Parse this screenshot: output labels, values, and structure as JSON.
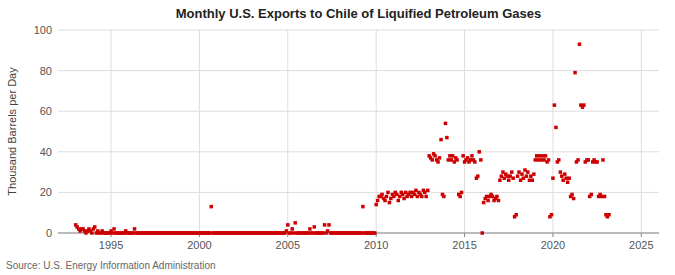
{
  "chart_data": {
    "type": "scatter",
    "title": "Monthly U.S. Exports to Chile of Liquified Petroleum Gases",
    "y_label": "Thousand Barrels per Day",
    "annotations": [
      "Source: U.S. Energy Information Administration"
    ],
    "color": "#cc0000",
    "marker": "square",
    "grid": true,
    "xlim": [
      1992.0,
      2026.0
    ],
    "ylim": [
      0,
      100
    ],
    "xticks": [
      1995,
      2000,
      2005,
      2010,
      2015,
      2020,
      2025
    ],
    "yticks": [
      0,
      20,
      40,
      60,
      80,
      100
    ],
    "x": [
      1993.0,
      1993.08,
      1993.17,
      1993.25,
      1993.33,
      1993.42,
      1993.5,
      1993.58,
      1993.67,
      1993.75,
      1993.83,
      1993.92,
      1994.0,
      1994.08,
      1994.17,
      1994.25,
      1994.33,
      1994.42,
      1994.5,
      1994.58,
      1994.67,
      1994.75,
      1994.83,
      1994.92,
      1995.0,
      1995.08,
      1995.17,
      1995.25,
      1995.33,
      1995.42,
      1995.5,
      1995.58,
      1995.67,
      1995.75,
      1995.83,
      1995.92,
      1996.0,
      1996.08,
      1996.17,
      1996.25,
      1996.33,
      1996.42,
      1996.5,
      1996.58,
      1996.67,
      1996.75,
      1996.83,
      1996.92,
      1997.0,
      1997.08,
      1997.17,
      1997.25,
      1997.33,
      1997.42,
      1997.5,
      1997.58,
      1997.67,
      1997.75,
      1997.83,
      1997.92,
      1998.0,
      1998.08,
      1998.17,
      1998.25,
      1998.33,
      1998.42,
      1998.5,
      1998.58,
      1998.67,
      1998.75,
      1998.83,
      1998.92,
      1999.0,
      1999.08,
      1999.17,
      1999.25,
      1999.33,
      1999.42,
      1999.5,
      1999.58,
      1999.67,
      1999.75,
      1999.83,
      1999.92,
      2000.0,
      2000.08,
      2000.17,
      2000.25,
      2000.33,
      2000.42,
      2000.5,
      2000.58,
      2000.67,
      2000.75,
      2000.83,
      2000.92,
      2001.0,
      2001.08,
      2001.17,
      2001.25,
      2001.33,
      2001.42,
      2001.5,
      2001.58,
      2001.67,
      2001.75,
      2001.83,
      2001.92,
      2002.0,
      2002.08,
      2002.17,
      2002.25,
      2002.33,
      2002.42,
      2002.5,
      2002.58,
      2002.67,
      2002.75,
      2002.83,
      2002.92,
      2003.0,
      2003.08,
      2003.17,
      2003.25,
      2003.33,
      2003.42,
      2003.5,
      2003.58,
      2003.67,
      2003.75,
      2003.83,
      2003.92,
      2004.0,
      2004.08,
      2004.17,
      2004.25,
      2004.33,
      2004.42,
      2004.5,
      2004.58,
      2004.67,
      2004.75,
      2004.83,
      2004.92,
      2005.0,
      2005.08,
      2005.17,
      2005.25,
      2005.33,
      2005.42,
      2005.5,
      2005.58,
      2005.67,
      2005.75,
      2005.83,
      2005.92,
      2006.0,
      2006.08,
      2006.17,
      2006.25,
      2006.33,
      2006.42,
      2006.5,
      2006.58,
      2006.67,
      2006.75,
      2006.83,
      2006.92,
      2007.0,
      2007.08,
      2007.17,
      2007.25,
      2007.33,
      2007.42,
      2007.5,
      2007.58,
      2007.67,
      2007.75,
      2007.83,
      2007.92,
      2008.0,
      2008.08,
      2008.17,
      2008.25,
      2008.33,
      2008.42,
      2008.5,
      2008.58,
      2008.67,
      2008.75,
      2008.83,
      2008.92,
      2009.0,
      2009.08,
      2009.17,
      2009.25,
      2009.33,
      2009.42,
      2009.5,
      2009.58,
      2009.67,
      2009.75,
      2009.83,
      2009.92,
      2010.0,
      2010.08,
      2010.17,
      2010.25,
      2010.33,
      2010.42,
      2010.5,
      2010.58,
      2010.67,
      2010.75,
      2010.83,
      2010.92,
      2011.0,
      2011.08,
      2011.17,
      2011.25,
      2011.33,
      2011.42,
      2011.5,
      2011.58,
      2011.67,
      2011.75,
      2011.83,
      2011.92,
      2012.0,
      2012.08,
      2012.17,
      2012.25,
      2012.33,
      2012.42,
      2012.5,
      2012.58,
      2012.67,
      2012.75,
      2012.83,
      2012.92,
      2013.0,
      2013.08,
      2013.17,
      2013.25,
      2013.33,
      2013.42,
      2013.5,
      2013.58,
      2013.67,
      2013.75,
      2013.83,
      2013.92,
      2014.0,
      2014.08,
      2014.17,
      2014.25,
      2014.33,
      2014.42,
      2014.5,
      2014.58,
      2014.67,
      2014.75,
      2014.83,
      2014.92,
      2015.0,
      2015.08,
      2015.17,
      2015.25,
      2015.33,
      2015.42,
      2015.5,
      2015.58,
      2015.67,
      2015.75,
      2015.83,
      2015.92,
      2016.0,
      2016.08,
      2016.17,
      2016.25,
      2016.33,
      2016.42,
      2016.5,
      2016.58,
      2016.67,
      2016.75,
      2016.83,
      2016.92,
      2017.0,
      2017.08,
      2017.17,
      2017.25,
      2017.33,
      2017.42,
      2017.5,
      2017.58,
      2017.67,
      2017.75,
      2017.83,
      2017.92,
      2018.0,
      2018.08,
      2018.17,
      2018.25,
      2018.33,
      2018.42,
      2018.5,
      2018.58,
      2018.67,
      2018.75,
      2018.83,
      2018.92,
      2019.0,
      2019.08,
      2019.17,
      2019.25,
      2019.33,
      2019.42,
      2019.5,
      2019.58,
      2019.67,
      2019.75,
      2019.83,
      2019.92,
      2020.0,
      2020.08,
      2020.17,
      2020.25,
      2020.33,
      2020.42,
      2020.5,
      2020.58,
      2020.67,
      2020.75,
      2020.83,
      2020.92,
      2021.0,
      2021.08,
      2021.17,
      2021.25,
      2021.33,
      2021.42,
      2021.5,
      2021.58,
      2021.67,
      2021.75,
      2021.83,
      2021.92,
      2022.0,
      2022.08,
      2022.17,
      2022.25,
      2022.33,
      2022.42,
      2022.5,
      2022.58,
      2022.67,
      2022.75,
      2022.83,
      2022.92,
      2023.0,
      2023.08,
      2023.17
    ],
    "values": [
      4,
      3,
      2,
      1,
      2,
      2,
      1,
      0,
      1,
      2,
      1,
      0,
      2,
      3,
      0,
      1,
      0,
      0,
      1,
      0,
      0,
      0,
      0,
      0,
      1,
      0,
      2,
      0,
      0,
      0,
      0,
      0,
      0,
      0,
      1,
      0,
      0,
      0,
      0,
      0,
      2,
      0,
      0,
      0,
      0,
      0,
      0,
      0,
      0,
      0,
      0,
      0,
      0,
      0,
      0,
      0,
      0,
      0,
      0,
      0,
      0,
      0,
      0,
      0,
      0,
      0,
      0,
      0,
      0,
      0,
      0,
      0,
      0,
      0,
      0,
      0,
      0,
      0,
      0,
      0,
      0,
      0,
      0,
      0,
      0,
      0,
      0,
      0,
      0,
      0,
      0,
      0,
      13,
      0,
      0,
      0,
      0,
      0,
      0,
      0,
      0,
      0,
      0,
      0,
      0,
      0,
      0,
      0,
      0,
      0,
      0,
      0,
      0,
      0,
      0,
      0,
      0,
      0,
      0,
      0,
      0,
      0,
      0,
      0,
      0,
      0,
      0,
      0,
      0,
      0,
      0,
      0,
      0,
      0,
      0,
      0,
      0,
      0,
      0,
      0,
      0,
      0,
      0,
      1,
      4,
      0,
      0,
      2,
      0,
      5,
      0,
      0,
      0,
      0,
      0,
      0,
      0,
      0,
      0,
      2,
      0,
      0,
      3,
      0,
      0,
      0,
      0,
      0,
      0,
      4,
      0,
      1,
      4,
      0,
      0,
      0,
      0,
      0,
      0,
      0,
      0,
      0,
      0,
      0,
      0,
      0,
      0,
      0,
      0,
      0,
      0,
      0,
      0,
      0,
      0,
      13,
      0,
      0,
      0,
      0,
      0,
      0,
      0,
      0,
      14,
      16,
      18,
      18,
      19,
      17,
      16,
      18,
      20,
      15,
      17,
      19,
      18,
      20,
      19,
      16,
      18,
      20,
      19,
      17,
      20,
      18,
      19,
      20,
      18,
      20,
      19,
      21,
      18,
      20,
      19,
      18,
      21,
      20,
      18,
      21,
      38,
      37,
      36,
      39,
      38,
      36,
      35,
      37,
      46,
      19,
      18,
      54,
      47,
      36,
      38,
      36,
      38,
      35,
      37,
      36,
      19,
      18,
      20,
      38,
      35,
      36,
      37,
      35,
      36,
      38,
      36,
      35,
      27,
      28,
      40,
      36,
      0,
      15,
      17,
      18,
      16,
      18,
      19,
      18,
      16,
      17,
      18,
      16,
      26,
      28,
      30,
      27,
      29,
      28,
      26,
      28,
      30,
      27,
      8,
      9,
      28,
      30,
      26,
      29,
      27,
      31,
      28,
      30,
      26,
      28,
      26,
      29,
      36,
      38,
      36,
      38,
      36,
      38,
      36,
      38,
      35,
      36,
      8,
      9,
      27,
      63,
      52,
      35,
      36,
      30,
      28,
      26,
      29,
      27,
      25,
      27,
      18,
      19,
      17,
      79,
      35,
      36,
      93,
      63,
      62,
      63,
      35,
      36,
      36,
      18,
      19,
      35,
      36,
      35,
      35,
      18,
      19,
      18,
      36,
      18,
      9,
      8,
      9
    ]
  }
}
